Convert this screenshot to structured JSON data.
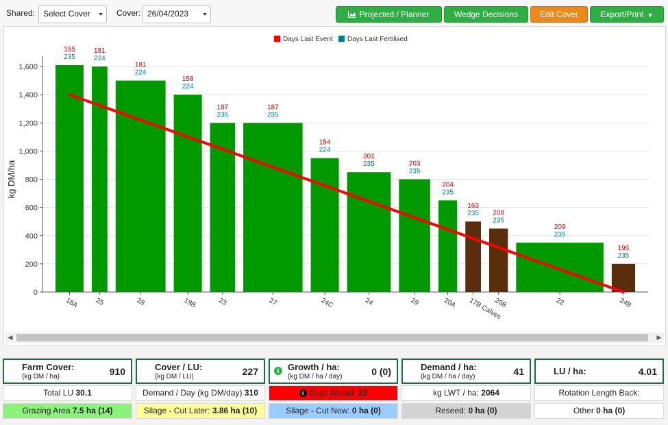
{
  "toolbar": {
    "shared_label": "Shared:",
    "shared_select_value": "Select Cover",
    "cover_label": "Cover:",
    "cover_date": "26/04/2023",
    "buttons": {
      "projected": "Projected / Planner",
      "wedge": "Wedge Decisions",
      "edit_cover": "Edit Cover",
      "export": "Export/Print"
    }
  },
  "colors": {
    "pasture_bar": "#009900",
    "other_bar": "#5a2d0c",
    "target_line": "#ff0000",
    "days_last_event": "#cc0000",
    "days_last_fertilised": "#00808a",
    "button_green": "#2fae43",
    "button_orange": "#ea8a1e",
    "panel_border": "#1f6b46"
  },
  "chart_data": {
    "type": "bar",
    "ylabel": "kg DM/ha",
    "xlabel": "",
    "ylim": [
      0,
      1600
    ],
    "yticks": [
      "0",
      "200",
      "400",
      "600",
      "800",
      "1,000",
      "1,200",
      "1,400",
      "1,600"
    ],
    "ytick_values": [
      0,
      200,
      400,
      600,
      800,
      1000,
      1200,
      1400,
      1600
    ],
    "grid": true,
    "legend": {
      "position": "top-center",
      "entries": [
        {
          "label": "Days Last Event",
          "color": "#ff0000"
        },
        {
          "label": "Days Last Fertilised",
          "color": "#008080"
        }
      ]
    },
    "categories": [
      "18A",
      "25",
      "28",
      "19B",
      "23",
      "27",
      "24C",
      "24",
      "29",
      "20A",
      "17B Calves",
      "20B",
      "22",
      "24B"
    ],
    "values": [
      1610,
      1600,
      1500,
      1400,
      1200,
      1200,
      950,
      850,
      800,
      650,
      500,
      450,
      350,
      200
    ],
    "relative_widths": [
      1.8,
      1.0,
      3.2,
      1.8,
      1.6,
      3.8,
      1.8,
      2.8,
      2.0,
      1.2,
      1.0,
      1.2,
      5.6,
      1.5
    ],
    "bar_types": [
      "pasture",
      "pasture",
      "pasture",
      "pasture",
      "pasture",
      "pasture",
      "pasture",
      "pasture",
      "pasture",
      "pasture",
      "other",
      "other",
      "pasture",
      "other"
    ],
    "days_last_event": [
      "155",
      "181",
      "181",
      "158",
      "187",
      "187",
      "154",
      "201",
      "203",
      "204",
      "163",
      "208",
      "209",
      "196"
    ],
    "days_last_fertilised": [
      "235",
      "224",
      "224",
      "224",
      "235",
      "235",
      "224",
      "235",
      "235",
      "235",
      "235",
      "235",
      "235",
      "235"
    ],
    "target_line": {
      "start_value": 1400,
      "end_value": 0
    }
  },
  "stats": {
    "farm_cover": {
      "title": "Farm Cover:",
      "unit": "(kg DM / ha)",
      "value": "910"
    },
    "cover_lu": {
      "title": "Cover / LU:",
      "unit": "(kg DM / LU)",
      "value": "227"
    },
    "growth": {
      "title": "Growth / ha:",
      "unit": "(kg DM / ha / day)",
      "value": "0 (0)"
    },
    "demand": {
      "title": "Demand / ha:",
      "unit": "(kg DM / ha / day)",
      "value": "41"
    },
    "lu_ha": {
      "title": "LU / ha:",
      "value": "4.01"
    }
  },
  "row1": {
    "total_lu_label": "Total LU",
    "total_lu_value": "30.1",
    "demand_day_label": "Demand / Day (kg DM/day)",
    "demand_day_value": "310",
    "days_ahead_label": "Days Ahead:",
    "days_ahead_value": "22",
    "kg_lwt_label": "kg LWT / ha:",
    "kg_lwt_value": "2064",
    "rotation_label": "Rotation Length Back:"
  },
  "row2": {
    "grazing_label": "Grazing Area",
    "grazing_value": "7.5 ha (14)",
    "silage_later_label": "Silage - Cut Later:",
    "silage_later_value": "3.86 ha (10)",
    "silage_now_label": "Silage - Cut Now:",
    "silage_now_value": "0 ha (0)",
    "reseed_label": "Reseed:",
    "reseed_value": "0 ha (0)",
    "other_label": "Other",
    "other_value": "0 ha (0)"
  }
}
